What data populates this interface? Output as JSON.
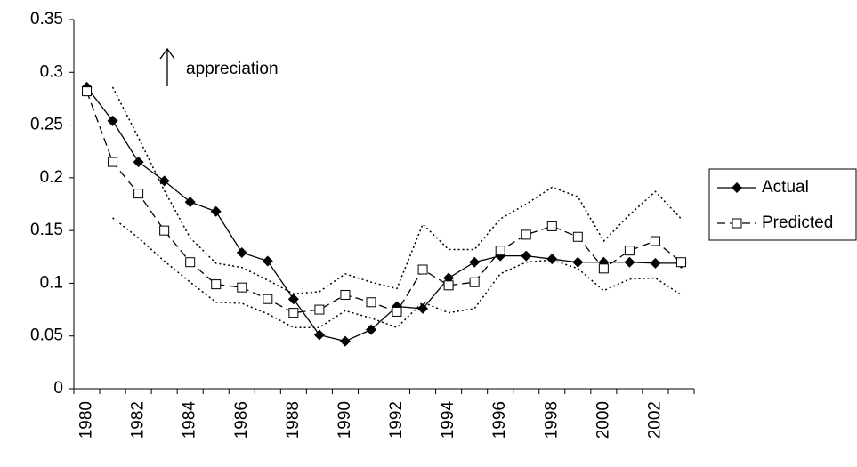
{
  "chart_data": {
    "type": "line",
    "annotation": "appreciation",
    "categories": [
      "1980",
      null,
      "1982",
      null,
      "1984",
      null,
      "1986",
      null,
      "1988",
      null,
      "1990",
      null,
      "1992",
      null,
      "1994",
      null,
      "1996",
      null,
      "1998",
      null,
      "2000",
      null,
      "2002",
      null
    ],
    "ylim": [
      0,
      0.35
    ],
    "yticks": [
      0,
      0.05,
      0.1,
      0.15,
      0.2,
      0.25,
      0.3,
      0.35
    ],
    "legend": "right",
    "series": [
      {
        "name": "Actual",
        "color": "#000000",
        "line_style": "solid",
        "marker": "diamond",
        "values": [
          0.286,
          0.254,
          0.215,
          0.197,
          0.177,
          0.168,
          0.129,
          0.121,
          0.085,
          0.051,
          0.045,
          0.056,
          0.078,
          0.076,
          0.105,
          0.12,
          0.126,
          0.126,
          0.123,
          0.12,
          0.12,
          0.12,
          0.119,
          0.119
        ]
      },
      {
        "name": "Predicted",
        "color": "#000000",
        "line_style": "dashed",
        "marker": "square",
        "values": [
          0.282,
          0.215,
          0.185,
          0.15,
          0.12,
          0.099,
          0.096,
          0.085,
          0.072,
          0.075,
          0.089,
          0.082,
          0.073,
          0.113,
          0.098,
          0.101,
          0.131,
          0.146,
          0.154,
          0.144,
          0.114,
          0.131,
          0.14,
          0.12
        ]
      },
      {
        "color": "#000000",
        "line_style": "dotted",
        "marker": "none",
        "values": [
          null,
          0.286,
          0.238,
          0.188,
          0.143,
          0.119,
          0.115,
          0.103,
          0.09,
          0.092,
          0.109,
          0.101,
          0.095,
          0.156,
          0.132,
          0.132,
          0.161,
          0.175,
          0.191,
          0.182,
          0.14,
          0.165,
          0.187,
          0.161
        ]
      },
      {
        "color": "#000000",
        "line_style": "dotted",
        "marker": "none",
        "values": [
          null,
          0.162,
          0.143,
          0.121,
          0.101,
          0.082,
          0.081,
          0.071,
          0.058,
          0.058,
          0.074,
          0.067,
          0.058,
          0.082,
          0.072,
          0.076,
          0.109,
          0.12,
          0.122,
          0.114,
          0.093,
          0.104,
          0.105,
          0.089
        ]
      }
    ]
  }
}
